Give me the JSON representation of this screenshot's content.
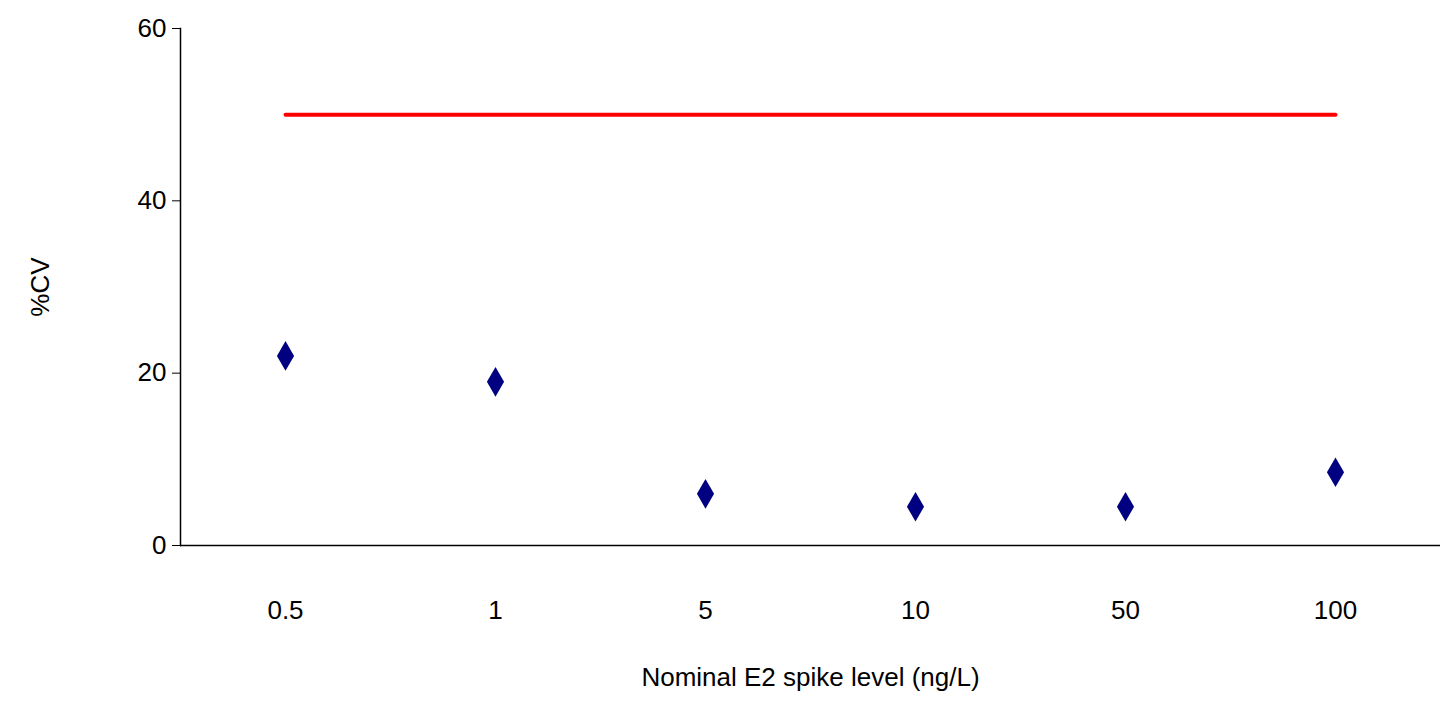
{
  "chart_data": {
    "type": "scatter",
    "x_label": "Nominal E2 spike level (ng/L)",
    "y_label": "%CV",
    "categories": [
      "0.5",
      "1",
      "5",
      "10",
      "50",
      "100"
    ],
    "series": [
      {
        "type": "scatter",
        "color": "#000080",
        "marker": "diamond",
        "values": [
          22,
          19,
          6,
          4.5,
          4.5,
          8.5
        ]
      },
      {
        "type": "line",
        "color": "#ff0000",
        "line_style": "solid",
        "values": [
          50,
          50,
          50,
          50,
          50,
          50
        ]
      }
    ],
    "ylim": [
      0,
      60
    ],
    "yticks": [
      0,
      20,
      40,
      60
    ],
    "grid": false
  }
}
